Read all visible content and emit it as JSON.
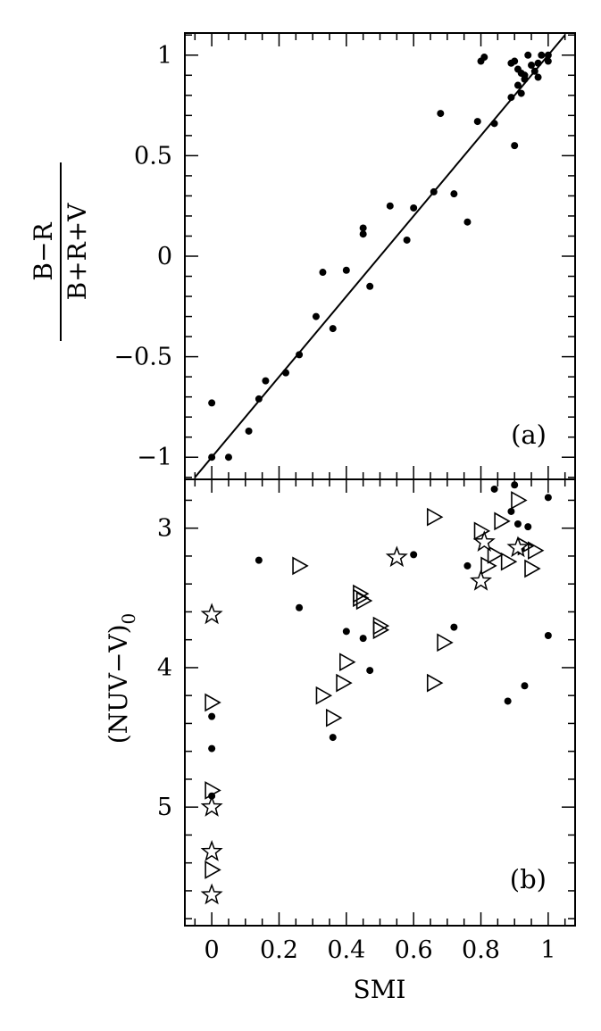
{
  "chart_data": [
    {
      "panel": "(a)",
      "type": "scatter",
      "xlabel": "",
      "ylabel": {
        "numerator": "B−R",
        "denominator": "B+R+V"
      },
      "xlim": [
        -0.08,
        1.08
      ],
      "ylim": [
        -1.11,
        1.11
      ],
      "y_ticks": [
        {
          "value": 1,
          "label": "1"
        },
        {
          "value": 0.5,
          "label": "0.5"
        },
        {
          "value": 0,
          "label": "0"
        },
        {
          "value": -0.5,
          "label": "−0.5"
        },
        {
          "value": -1,
          "label": "−1"
        }
      ],
      "fit_line": {
        "x": [
          -0.05,
          1.05
        ],
        "y": [
          -1.1,
          1.1
        ]
      },
      "series": [
        {
          "marker": "dot",
          "points": [
            [
              0.0,
              -1.0
            ],
            [
              0.0,
              -0.73
            ],
            [
              0.05,
              -1.0
            ],
            [
              0.11,
              -0.87
            ],
            [
              0.14,
              -0.71
            ],
            [
              0.16,
              -0.62
            ],
            [
              0.22,
              -0.58
            ],
            [
              0.26,
              -0.49
            ],
            [
              0.31,
              -0.3
            ],
            [
              0.33,
              -0.08
            ],
            [
              0.36,
              -0.36
            ],
            [
              0.4,
              -0.07
            ],
            [
              0.45,
              0.14
            ],
            [
              0.45,
              0.11
            ],
            [
              0.47,
              -0.15
            ],
            [
              0.53,
              0.25
            ],
            [
              0.58,
              0.08
            ],
            [
              0.6,
              0.24
            ],
            [
              0.66,
              0.32
            ],
            [
              0.68,
              0.71
            ],
            [
              0.72,
              0.31
            ],
            [
              0.76,
              0.17
            ],
            [
              0.79,
              0.67
            ],
            [
              0.8,
              0.97
            ],
            [
              0.81,
              0.99
            ],
            [
              0.84,
              0.66
            ],
            [
              0.89,
              0.79
            ],
            [
              0.89,
              0.96
            ],
            [
              0.9,
              0.97
            ],
            [
              0.9,
              0.55
            ],
            [
              0.91,
              0.93
            ],
            [
              0.91,
              0.85
            ],
            [
              0.92,
              0.81
            ],
            [
              0.92,
              0.91
            ],
            [
              0.93,
              0.88
            ],
            [
              0.93,
              0.9
            ],
            [
              0.94,
              1.0
            ],
            [
              0.95,
              0.95
            ],
            [
              0.96,
              0.92
            ],
            [
              0.97,
              0.89
            ],
            [
              0.97,
              0.96
            ],
            [
              0.98,
              1.0
            ],
            [
              1.0,
              0.97
            ],
            [
              1.0,
              1.0
            ]
          ]
        }
      ]
    },
    {
      "panel": "(b)",
      "type": "scatter",
      "xlabel": "SMI",
      "ylabel": {
        "main": "(NUV−V)",
        "subscript": "0"
      },
      "xlim": [
        -0.08,
        1.08
      ],
      "ylim": [
        5.85,
        2.65
      ],
      "y_inverted": true,
      "x_ticks": [
        {
          "value": 0,
          "label": "0"
        },
        {
          "value": 0.2,
          "label": "0.2"
        },
        {
          "value": 0.4,
          "label": "0.4"
        },
        {
          "value": 0.6,
          "label": "0.6"
        },
        {
          "value": 0.8,
          "label": "0.8"
        },
        {
          "value": 1,
          "label": "1"
        }
      ],
      "y_ticks": [
        {
          "value": 3,
          "label": "3"
        },
        {
          "value": 4,
          "label": "4"
        },
        {
          "value": 5,
          "label": "5"
        }
      ],
      "series": [
        {
          "marker": "dot",
          "points": [
            [
              0.0,
              4.35
            ],
            [
              0.0,
              4.58
            ],
            [
              0.0,
              4.92
            ],
            [
              0.14,
              3.23
            ],
            [
              0.26,
              3.57
            ],
            [
              0.36,
              4.5
            ],
            [
              0.4,
              3.74
            ],
            [
              0.45,
              3.79
            ],
            [
              0.47,
              4.02
            ],
            [
              0.6,
              3.19
            ],
            [
              0.72,
              3.71
            ],
            [
              0.76,
              3.27
            ],
            [
              0.84,
              2.72
            ],
            [
              0.88,
              4.24
            ],
            [
              0.89,
              2.88
            ],
            [
              0.9,
              2.69
            ],
            [
              0.91,
              2.97
            ],
            [
              0.92,
              3.15
            ],
            [
              0.93,
              4.13
            ],
            [
              0.94,
              2.99
            ],
            [
              1.0,
              2.78
            ],
            [
              1.0,
              3.77
            ]
          ]
        },
        {
          "marker": "open-triangle-right",
          "points": [
            [
              0.0,
              4.25
            ],
            [
              0.0,
              4.88
            ],
            [
              0.0,
              5.45
            ],
            [
              0.26,
              3.27
            ],
            [
              0.33,
              4.2
            ],
            [
              0.36,
              4.36
            ],
            [
              0.39,
              4.11
            ],
            [
              0.4,
              3.96
            ],
            [
              0.44,
              3.47
            ],
            [
              0.44,
              3.5
            ],
            [
              0.45,
              3.52
            ],
            [
              0.5,
              3.7
            ],
            [
              0.5,
              3.73
            ],
            [
              0.66,
              2.92
            ],
            [
              0.66,
              4.11
            ],
            [
              0.69,
              3.82
            ],
            [
              0.8,
              3.02
            ],
            [
              0.82,
              3.27
            ],
            [
              0.84,
              3.19
            ],
            [
              0.86,
              2.95
            ],
            [
              0.88,
              3.24
            ],
            [
              0.91,
              2.8
            ],
            [
              0.93,
              3.13
            ],
            [
              0.95,
              3.29
            ],
            [
              0.96,
              3.16
            ]
          ]
        },
        {
          "marker": "open-star",
          "points": [
            [
              0.0,
              3.62
            ],
            [
              0.0,
              5.0
            ],
            [
              0.0,
              5.32
            ],
            [
              0.0,
              5.63
            ],
            [
              0.55,
              3.21
            ],
            [
              0.8,
              3.38
            ],
            [
              0.81,
              3.1
            ],
            [
              0.91,
              3.14
            ]
          ]
        }
      ]
    }
  ]
}
